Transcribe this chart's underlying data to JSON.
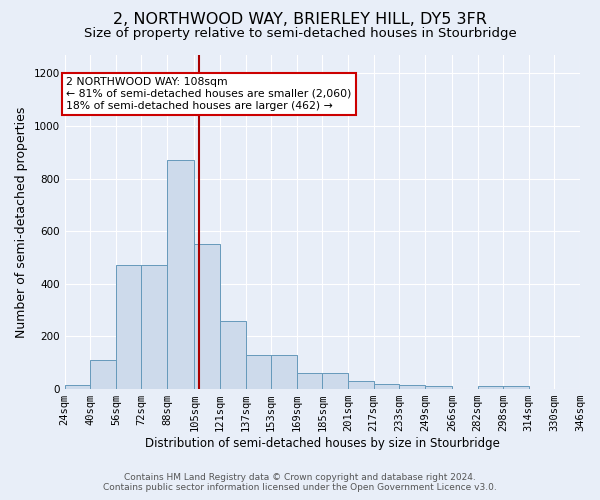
{
  "title": "2, NORTHWOOD WAY, BRIERLEY HILL, DY5 3FR",
  "subtitle": "Size of property relative to semi-detached houses in Stourbridge",
  "xlabel": "Distribution of semi-detached houses by size in Stourbridge",
  "ylabel": "Number of semi-detached properties",
  "footer1": "Contains HM Land Registry data © Crown copyright and database right 2024.",
  "footer2": "Contains public sector information licensed under the Open Government Licence v3.0.",
  "bin_edges": [
    24,
    40,
    56,
    72,
    88,
    105,
    121,
    137,
    153,
    169,
    185,
    201,
    217,
    233,
    249,
    266,
    282,
    298,
    314,
    330,
    346
  ],
  "bar_heights": [
    15,
    110,
    470,
    470,
    870,
    550,
    260,
    130,
    130,
    60,
    60,
    30,
    20,
    15,
    10,
    0,
    10,
    10,
    0,
    0
  ],
  "bar_color": "#cddaeb",
  "bar_edge_color": "#6699bb",
  "vline_x": 108,
  "vline_color": "#aa0000",
  "annotation_line1": "2 NORTHWOOD WAY: 108sqm",
  "annotation_line2": "← 81% of semi-detached houses are smaller (2,060)",
  "annotation_line3": "18% of semi-detached houses are larger (462) →",
  "annotation_box_color": "#ffffff",
  "annotation_box_edge": "#cc0000",
  "ylim": [
    0,
    1270
  ],
  "xlim_left": 24,
  "xlim_right": 346,
  "background_color": "#e8eef8",
  "plot_bg_color": "#e8eef8",
  "grid_color": "#ffffff",
  "title_fontsize": 11.5,
  "subtitle_fontsize": 9.5,
  "tick_label_fontsize": 7.5,
  "ylabel_fontsize": 9,
  "xlabel_fontsize": 8.5,
  "yticks": [
    0,
    200,
    400,
    600,
    800,
    1000,
    1200
  ]
}
